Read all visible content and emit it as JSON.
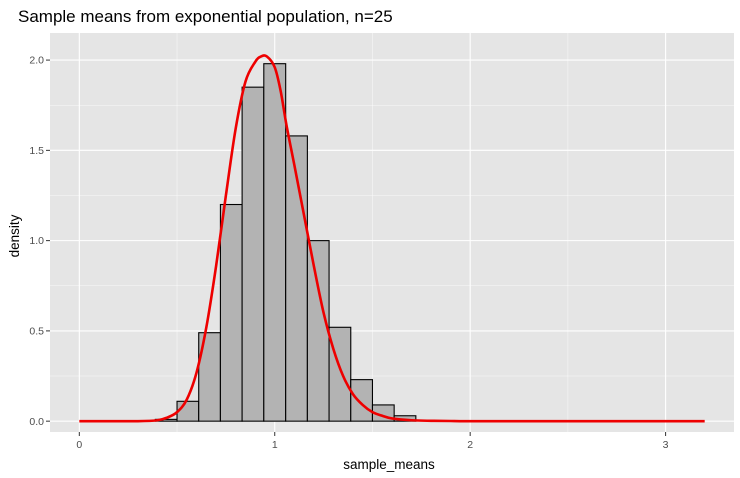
{
  "chart_data": {
    "type": "bar",
    "title": "Sample means from exponential population, n=25",
    "xlabel": "sample_means",
    "ylabel": "density",
    "xlim": [
      -0.15,
      3.35
    ],
    "ylim": [
      -0.06,
      2.15
    ],
    "x_ticks": [
      0,
      1,
      2,
      3
    ],
    "x_tick_labels": [
      "0",
      "1",
      "2",
      "3"
    ],
    "y_ticks": [
      0,
      0.5,
      1,
      1.5,
      2
    ],
    "y_tick_labels": [
      "0.0",
      "0.5",
      "1.0",
      "1.5",
      "2.0"
    ],
    "grid": true,
    "legend": "none",
    "histogram": {
      "bin_width": 0.111,
      "bins": [
        {
          "x0": 0.389,
          "x1": 0.5,
          "density": 0.01
        },
        {
          "x0": 0.5,
          "x1": 0.611,
          "density": 0.11
        },
        {
          "x0": 0.611,
          "x1": 0.722,
          "density": 0.49
        },
        {
          "x0": 0.722,
          "x1": 0.833,
          "density": 1.2
        },
        {
          "x0": 0.833,
          "x1": 0.944,
          "density": 1.85
        },
        {
          "x0": 0.944,
          "x1": 1.056,
          "density": 1.98
        },
        {
          "x0": 1.056,
          "x1": 1.167,
          "density": 1.58
        },
        {
          "x0": 1.167,
          "x1": 1.278,
          "density": 1.0
        },
        {
          "x0": 1.278,
          "x1": 1.389,
          "density": 0.52
        },
        {
          "x0": 1.389,
          "x1": 1.5,
          "density": 0.23
        },
        {
          "x0": 1.5,
          "x1": 1.611,
          "density": 0.09
        },
        {
          "x0": 1.611,
          "x1": 1.722,
          "density": 0.03
        }
      ]
    },
    "density_curve": {
      "x": [
        0.0,
        0.3,
        0.4,
        0.45,
        0.5,
        0.55,
        0.6,
        0.65,
        0.7,
        0.75,
        0.8,
        0.85,
        0.9,
        0.93,
        0.96,
        1.0,
        1.03,
        1.06,
        1.1,
        1.15,
        1.2,
        1.25,
        1.3,
        1.35,
        1.4,
        1.45,
        1.5,
        1.55,
        1.6,
        1.7,
        1.8,
        1.9,
        2.0,
        2.5,
        3.0,
        3.2
      ],
      "y": [
        0.0,
        0.0,
        0.005,
        0.02,
        0.05,
        0.12,
        0.27,
        0.52,
        0.86,
        1.25,
        1.62,
        1.88,
        1.99,
        2.02,
        2.02,
        1.96,
        1.83,
        1.64,
        1.42,
        1.14,
        0.86,
        0.6,
        0.4,
        0.25,
        0.15,
        0.09,
        0.05,
        0.03,
        0.015,
        0.005,
        0.002,
        0.001,
        0.0,
        0.0,
        0.0,
        0.0
      ]
    },
    "colors": {
      "panel_bg": "#e5e5e5",
      "grid_major": "#ffffff",
      "bar_fill": "#b3b3b3",
      "bar_stroke": "#000000",
      "curve": "#ee0000"
    }
  }
}
